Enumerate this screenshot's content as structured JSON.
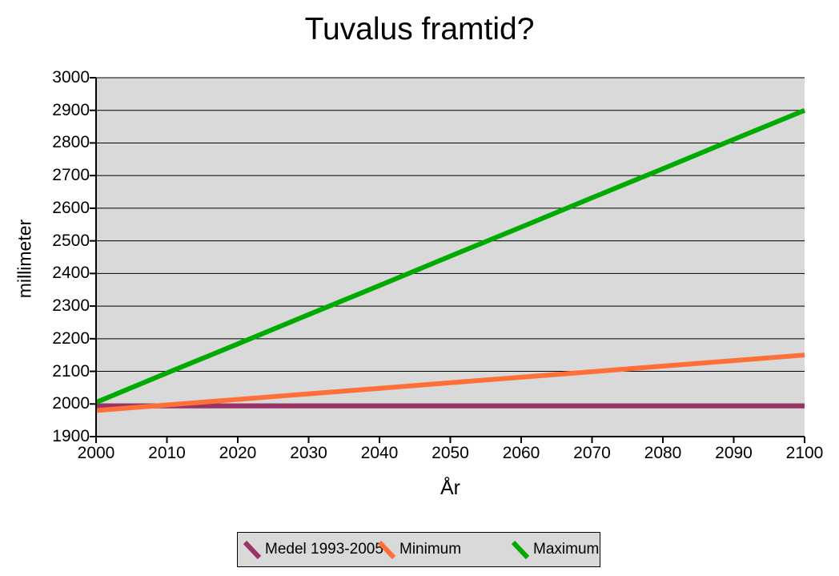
{
  "chart_data": {
    "type": "line",
    "title": "Tuvalus framtid?",
    "xlabel": "År",
    "ylabel": "millimeter",
    "x": [
      2000,
      2010,
      2020,
      2030,
      2040,
      2050,
      2060,
      2070,
      2080,
      2090,
      2100
    ],
    "series": [
      {
        "name": "Medel 1993-2005",
        "color": "#993366",
        "values": [
          1994,
          1994,
          1994,
          1994,
          1994,
          1994,
          1994,
          1994,
          1994,
          1994,
          1994
        ]
      },
      {
        "name": "Minimum",
        "color": "#ff7038",
        "values": [
          1980,
          1997,
          2014,
          2031,
          2048,
          2065,
          2082,
          2099,
          2116,
          2133,
          2150
        ]
      },
      {
        "name": "Maximum",
        "color": "#00aa00",
        "values": [
          2005,
          2095,
          2184,
          2274,
          2363,
          2453,
          2542,
          2632,
          2721,
          2811,
          2900
        ]
      }
    ],
    "xlim": [
      2000,
      2100
    ],
    "ylim": [
      1900,
      3000
    ],
    "x_tick_step": 10,
    "y_tick_step": 100,
    "grid": "horizontal",
    "grid_color": "#000000",
    "axis_color": "#000000",
    "plot_bg": "#d9d9d9",
    "legend_bg": "#d9d9d9",
    "legend_position": "bottom",
    "line_width": 6
  }
}
